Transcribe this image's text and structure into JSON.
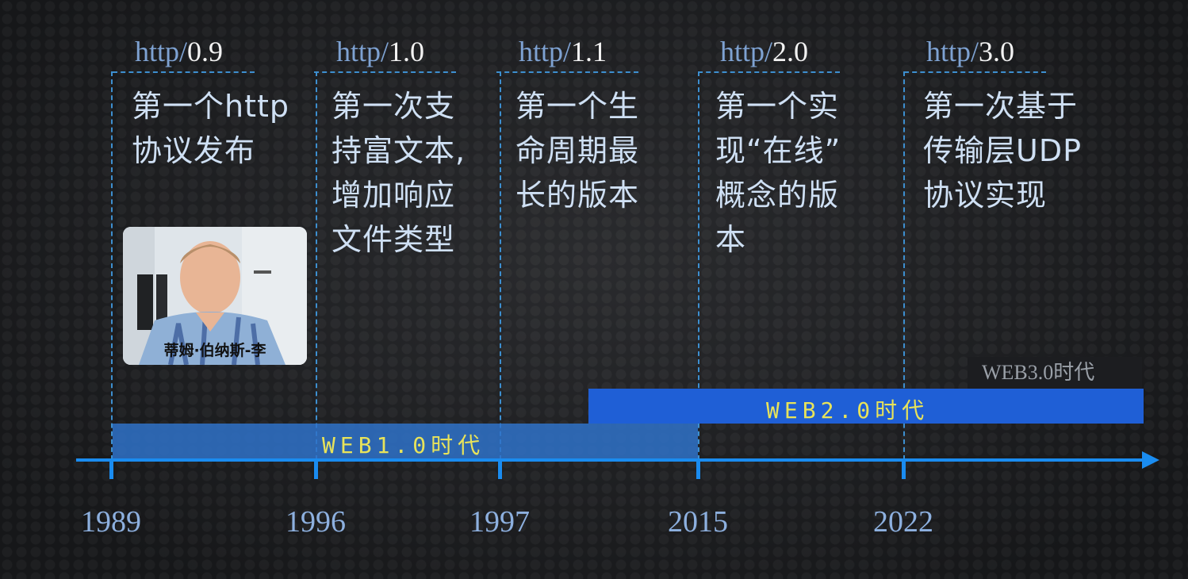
{
  "versions": [
    {
      "proto": "http/",
      "num": "0.9",
      "desc": "第一个http\n协议发布",
      "year": "1989"
    },
    {
      "proto": "http/",
      "num": "1.0",
      "desc": "第一次支\n持富文本,\n增加响应\n文件类型",
      "year": "1996"
    },
    {
      "proto": "http/",
      "num": "1.1",
      "desc": "第一个生\n命周期最\n长的版本",
      "year": "1997"
    },
    {
      "proto": "http/",
      "num": "2.0",
      "desc": "第一个实\n现“在线”\n概念的版\n本",
      "year": "2015"
    },
    {
      "proto": "http/",
      "num": "3.0",
      "desc": "第一次基于\n传输层UDP\n协议实现",
      "year": "2022"
    }
  ],
  "eras": {
    "web1": "WEB1.0时代",
    "web2": "WEB2.0时代",
    "web3": "WEB3.0时代"
  },
  "portrait": {
    "caption": "蒂姆·伯纳斯-李"
  },
  "colors": {
    "axis": "#1a8cf0",
    "web1_bar": "#2f72c9",
    "web2_bar": "#1f5fd6",
    "era_text": "#e8e35a"
  }
}
